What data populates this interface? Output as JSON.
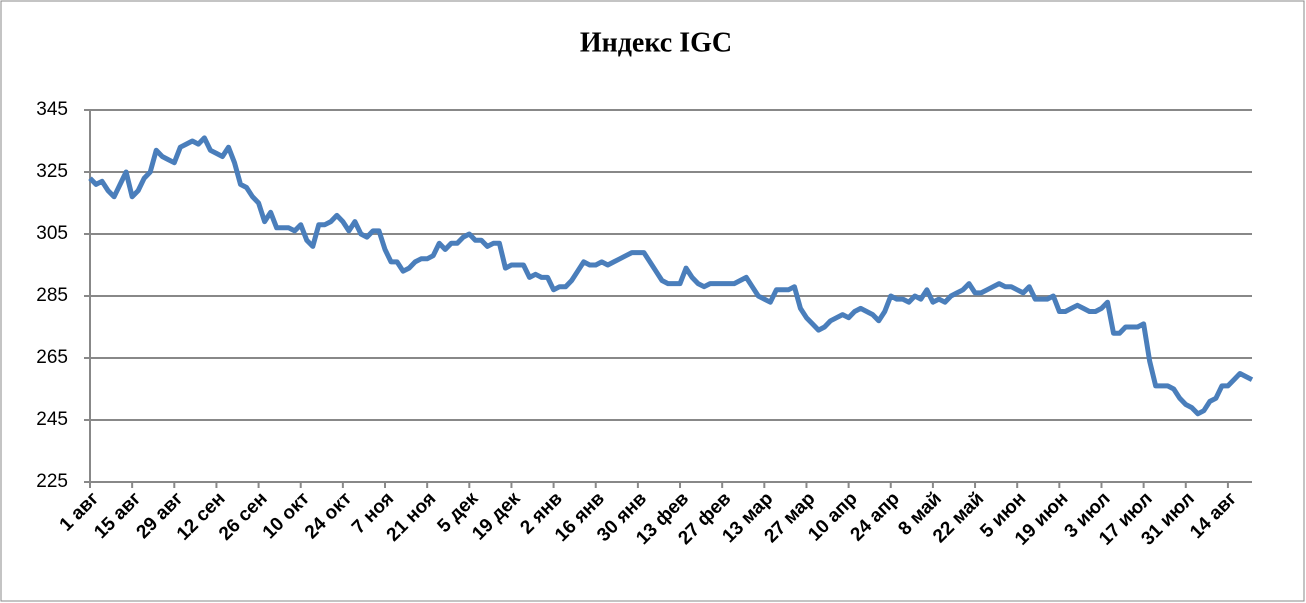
{
  "chart_data": {
    "type": "line",
    "title": "Индекс IGC",
    "categories": [
      "1 авг",
      null,
      null,
      null,
      null,
      null,
      null,
      "15 авг",
      null,
      null,
      null,
      null,
      null,
      null,
      "29 авг",
      null,
      null,
      null,
      null,
      null,
      null,
      "12 сен",
      null,
      null,
      null,
      null,
      null,
      null,
      "26 сен",
      null,
      null,
      null,
      null,
      null,
      null,
      "10 окт",
      null,
      null,
      null,
      null,
      null,
      null,
      "24 окт",
      null,
      null,
      null,
      null,
      null,
      null,
      "7 ноя",
      null,
      null,
      null,
      null,
      null,
      null,
      "21 ноя",
      null,
      null,
      null,
      null,
      null,
      null,
      "5 дек",
      null,
      null,
      null,
      null,
      null,
      null,
      "19 дек",
      null,
      null,
      null,
      null,
      null,
      null,
      "2 янв",
      null,
      null,
      null,
      null,
      null,
      null,
      "16 янв",
      null,
      null,
      null,
      null,
      null,
      null,
      "30 янв",
      null,
      null,
      null,
      null,
      null,
      null,
      "13 фев",
      null,
      null,
      null,
      null,
      null,
      null,
      "27 фев",
      null,
      null,
      null,
      null,
      null,
      null,
      "13 мар",
      null,
      null,
      null,
      null,
      null,
      null,
      "27 мар",
      null,
      null,
      null,
      null,
      null,
      null,
      "10 апр",
      null,
      null,
      null,
      null,
      null,
      null,
      "24 апр",
      null,
      null,
      null,
      null,
      null,
      null,
      "8 май",
      null,
      null,
      null,
      null,
      null,
      null,
      "22 май",
      null,
      null,
      null,
      null,
      null,
      null,
      "5 июн",
      null,
      null,
      null,
      null,
      null,
      null,
      "19 июн",
      null,
      null,
      null,
      null,
      null,
      null,
      "3 июл",
      null,
      null,
      null,
      null,
      null,
      null,
      "17 июл",
      null,
      null,
      null,
      null,
      null,
      null,
      "31 июл",
      null,
      null,
      null,
      null,
      null,
      null,
      "14 авг",
      null,
      null,
      null,
      null
    ],
    "series": [
      {
        "name": "Индекс IGC",
        "color": "#4a7ebb",
        "values": [
          323,
          321,
          322,
          319,
          317,
          321,
          325,
          317,
          319,
          323,
          325,
          332,
          330,
          329,
          328,
          333,
          334,
          335,
          334,
          336,
          332,
          331,
          330,
          333,
          328,
          321,
          320,
          317,
          315,
          309,
          312,
          307,
          307,
          307,
          306,
          308,
          303,
          301,
          308,
          308,
          309,
          311,
          309,
          306,
          309,
          305,
          304,
          306,
          306,
          300,
          296,
          296,
          293,
          294,
          296,
          297,
          297,
          298,
          302,
          300,
          302,
          302,
          304,
          305,
          303,
          303,
          301,
          302,
          302,
          294,
          295,
          295,
          295,
          291,
          292,
          291,
          291,
          287,
          288,
          288,
          290,
          293,
          296,
          295,
          295,
          296,
          295,
          296,
          297,
          298,
          299,
          299,
          299,
          296,
          293,
          290,
          289,
          289,
          289,
          294,
          291,
          289,
          288,
          289,
          289,
          289,
          289,
          289,
          290,
          291,
          288,
          285,
          284,
          283,
          287,
          287,
          287,
          288,
          281,
          278,
          276,
          274,
          275,
          277,
          278,
          279,
          278,
          280,
          281,
          280,
          279,
          277,
          280,
          285,
          284,
          284,
          283,
          285,
          284,
          287,
          283,
          284,
          283,
          285,
          286,
          287,
          289,
          286,
          286,
          287,
          288,
          289,
          288,
          288,
          287,
          286,
          288,
          284,
          284,
          284,
          285,
          280,
          280,
          281,
          282,
          281,
          280,
          280,
          281,
          283,
          273,
          273,
          275,
          275,
          275,
          276,
          264,
          256,
          256,
          256,
          255,
          252,
          250,
          249,
          247,
          248,
          251,
          252,
          256,
          256,
          258,
          260,
          259,
          258
        ]
      }
    ],
    "ylim": [
      225,
      345
    ],
    "yticks": [
      225,
      245,
      265,
      285,
      305,
      325,
      345
    ],
    "grid": true
  }
}
